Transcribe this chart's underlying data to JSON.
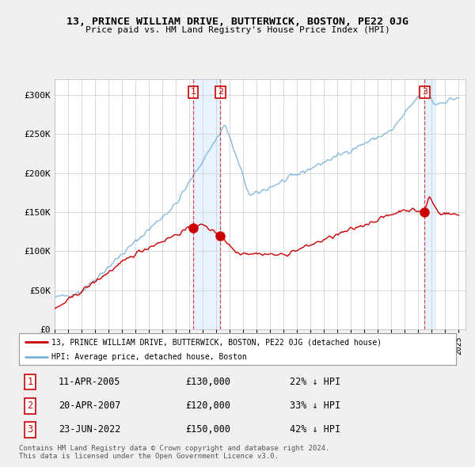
{
  "title": "13, PRINCE WILLIAM DRIVE, BUTTERWICK, BOSTON, PE22 0JG",
  "subtitle": "Price paid vs. HM Land Registry's House Price Index (HPI)",
  "ylim": [
    0,
    320000
  ],
  "yticks": [
    0,
    50000,
    100000,
    150000,
    200000,
    250000,
    300000
  ],
  "ytick_labels": [
    "£0",
    "£50K",
    "£100K",
    "£150K",
    "£200K",
    "£250K",
    "£300K"
  ],
  "x_start_year": 1995,
  "x_end_year": 2025,
  "hpi_color": "#7ab4d8",
  "price_color": "#cc0000",
  "sale1_yr_decimal": 2005.28,
  "sale1_price": 130000,
  "sale1_pct": "22%",
  "sale1_date": "11-APR-2005",
  "sale2_yr_decimal": 2007.3,
  "sale2_price": 120000,
  "sale2_pct": "33%",
  "sale2_date": "20-APR-2007",
  "sale3_yr_decimal": 2022.47,
  "sale3_price": 150000,
  "sale3_pct": "42%",
  "sale3_date": "23-JUN-2022",
  "legend_label_red": "13, PRINCE WILLIAM DRIVE, BUTTERWICK, BOSTON, PE22 0JG (detached house)",
  "legend_label_blue": "HPI: Average price, detached house, Boston",
  "footer1": "Contains HM Land Registry data © Crown copyright and database right 2024.",
  "footer2": "This data is licensed under the Open Government Licence v3.0.",
  "bg_color": "#f0f0f0",
  "plot_bg_color": "#ffffff",
  "grid_color": "#cccccc",
  "shade_color": "#ddeeff"
}
